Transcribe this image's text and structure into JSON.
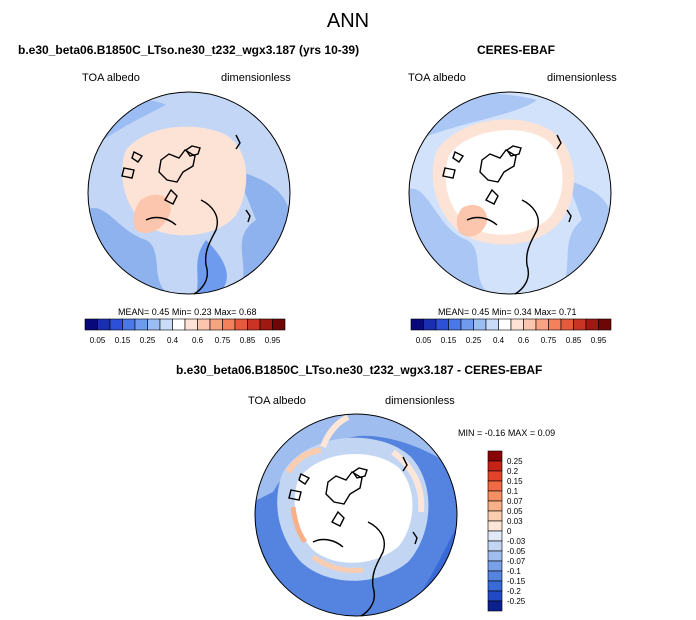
{
  "page": {
    "title": "ANN"
  },
  "panels": [
    {
      "case_title": "b.e30_beta06.B1850C_LTso.ne30_t232_wgx3.187 (yrs 10-39)",
      "var_label": "TOA albedo",
      "units_label": "dimensionless",
      "stats": {
        "mean_label": "MEAN=",
        "mean": "0.45",
        "min_label": "Min=",
        "min": "0.23",
        "max_label": "Max=",
        "max": "0.68"
      }
    },
    {
      "case_title": "CERES-EBAF",
      "var_label": "TOA albedo",
      "units_label": "dimensionless",
      "stats": {
        "mean_label": "MEAN=",
        "mean": "0.45",
        "min_label": "Min=",
        "min": "0.34",
        "max_label": "Max=",
        "max": "0.71"
      }
    }
  ],
  "abs_colorbar": {
    "colors": [
      "#08087a",
      "#1a2fb0",
      "#2c50d8",
      "#4a78e6",
      "#6f9bee",
      "#9cbdf4",
      "#c8dcf8",
      "#ffffff",
      "#fde3d5",
      "#fbc6ad",
      "#f8a483",
      "#f4805c",
      "#e85a3c",
      "#c93424",
      "#a01812",
      "#6e0606"
    ],
    "tick_labels": [
      "0.05",
      "0.15",
      "0.25",
      "0.4",
      "0.6",
      "0.75",
      "0.85",
      "0.95"
    ]
  },
  "diff": {
    "case_title": "b.e30_beta06.B1850C_LTso.ne30_t232_wgx3.187 - CERES-EBAF",
    "var_label": "TOA albedo",
    "units_label": "dimensionless",
    "stats": {
      "min_label": "MIN =",
      "min": "-0.16",
      "max_label": "MAX =",
      "max": "0.09"
    },
    "colorbar": {
      "colors": [
        "#8a0606",
        "#c42418",
        "#e2442a",
        "#f06a44",
        "#f58e62",
        "#f8b088",
        "#fbcdb0",
        "#fde6d8",
        "#dfe9f8",
        "#c2d6f3",
        "#9fbdee",
        "#789fe8",
        "#5584e0",
        "#3a6ad8",
        "#2249c4",
        "#0b1f8f"
      ],
      "tick_labels": [
        "0.25",
        "0.2",
        "0.15",
        "0.1",
        "0.07",
        "0.05",
        "0.03",
        "0",
        "-0.03",
        "-0.05",
        "-0.07",
        "-0.1",
        "-0.15",
        "-0.2",
        "-0.25"
      ]
    }
  }
}
